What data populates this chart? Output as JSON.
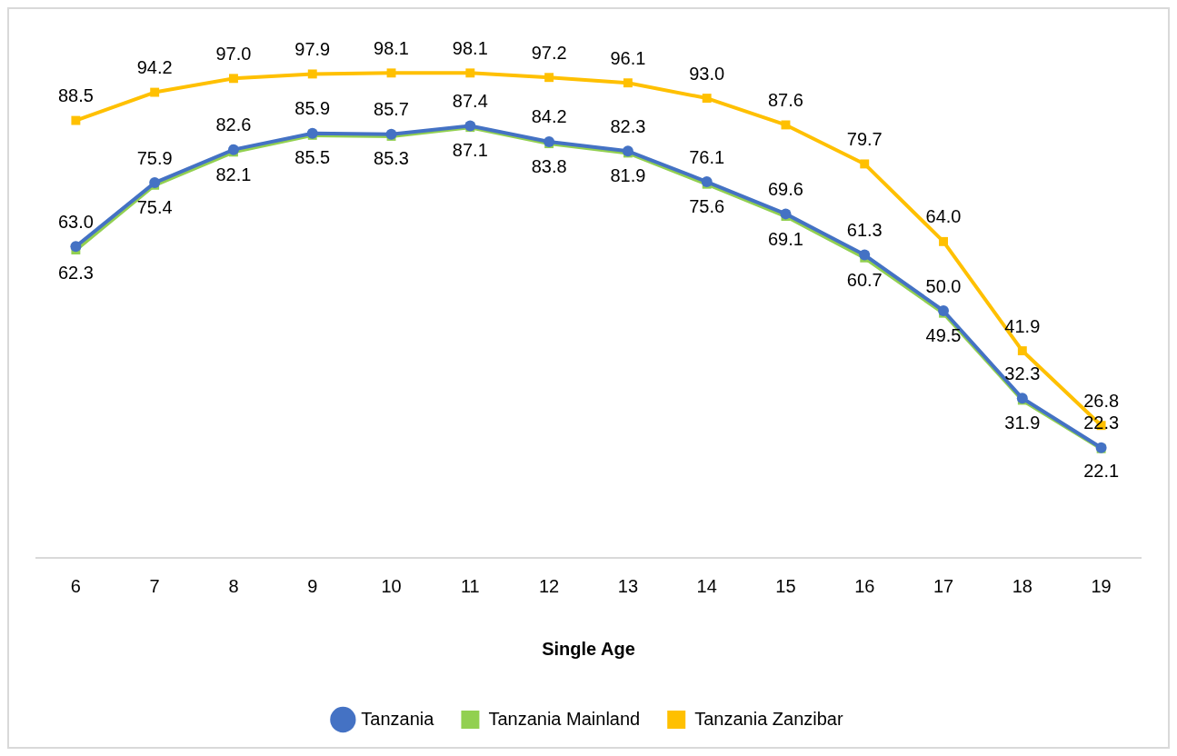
{
  "chart_data": {
    "type": "line",
    "xlabel": "Single Age",
    "categories": [
      "6",
      "7",
      "8",
      "9",
      "10",
      "11",
      "12",
      "13",
      "14",
      "15",
      "16",
      "17",
      "18",
      "19"
    ],
    "series": [
      {
        "name": "Tanzania",
        "color": "#4472c4",
        "marker": "circle",
        "values": [
          63.0,
          75.9,
          82.6,
          85.9,
          85.7,
          87.4,
          84.2,
          82.3,
          76.1,
          69.6,
          61.3,
          50.0,
          32.3,
          22.3
        ],
        "value_labels": [
          "63.0",
          "75.9",
          "82.6",
          "85.9",
          "85.7",
          "87.4",
          "84.2",
          "82.3",
          "76.1",
          "69.6",
          "61.3",
          "50.0",
          "32.3",
          "22.3"
        ]
      },
      {
        "name": "Tanzania Mainland",
        "color": "#92d050",
        "marker": "square",
        "values": [
          62.3,
          75.4,
          82.1,
          85.5,
          85.3,
          87.1,
          83.8,
          81.9,
          75.6,
          69.1,
          60.7,
          49.5,
          31.9,
          22.1
        ],
        "value_labels": [
          "62.3",
          "75.4",
          "82.1",
          "85.5",
          "85.3",
          "87.1",
          "83.8",
          "81.9",
          "75.6",
          "69.1",
          "60.7",
          "49.5",
          "31.9",
          "22.1"
        ]
      },
      {
        "name": "Tanzania Zanzibar",
        "color": "#ffc000",
        "marker": "square",
        "values": [
          88.5,
          94.2,
          97.0,
          97.9,
          98.1,
          98.1,
          97.2,
          96.1,
          93.0,
          87.6,
          79.7,
          64.0,
          41.9,
          26.8
        ],
        "value_labels": [
          "88.5",
          "94.2",
          "97.0",
          "97.9",
          "98.1",
          "98.1",
          "97.2",
          "96.1",
          "93.0",
          "87.6",
          "79.7",
          "64.0",
          "41.9",
          "26.8"
        ]
      }
    ],
    "legend": "bottom"
  }
}
